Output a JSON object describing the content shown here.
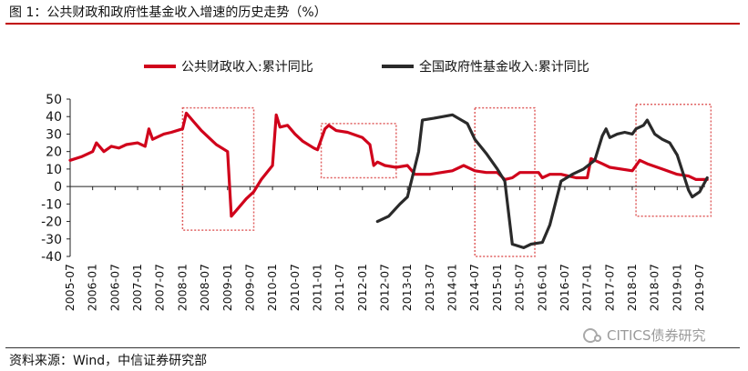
{
  "title": "图 1：公共财政和政府性基金收入增速的历史走势（%）",
  "source": "资料来源：Wind，中信证券研究部",
  "watermark": "CITICS债券研究",
  "colors": {
    "series1": "#d0021b",
    "series2": "#2a2a2a",
    "box": "#e06060",
    "accent": "#c00000"
  },
  "chart_data": {
    "type": "line",
    "ylim": [
      -40,
      50
    ],
    "yticks": [
      50,
      40,
      30,
      20,
      10,
      0,
      -10,
      -20,
      -30,
      -40
    ],
    "xticks": [
      "2005-07",
      "2006-01",
      "2006-07",
      "2007-01",
      "2007-07",
      "2008-01",
      "2008-07",
      "2009-01",
      "2009-07",
      "2010-01",
      "2010-07",
      "2011-01",
      "2011-07",
      "2012-01",
      "2012-07",
      "2013-01",
      "2013-07",
      "2014-01",
      "2014-07",
      "2015-01",
      "2015-07",
      "2016-01",
      "2016-07",
      "2017-01",
      "2017-07",
      "2018-01",
      "2018-07",
      "2019-01",
      "2019-07"
    ],
    "legend_position": "top",
    "series": [
      {
        "name": "公共财政收入:累计同比",
        "points": [
          [
            "2005-07",
            15
          ],
          [
            "2005-10",
            17
          ],
          [
            "2006-01",
            20
          ],
          [
            "2006-02",
            25
          ],
          [
            "2006-04",
            20
          ],
          [
            "2006-06",
            23
          ],
          [
            "2006-08",
            22
          ],
          [
            "2006-10",
            24
          ],
          [
            "2007-01",
            25
          ],
          [
            "2007-03",
            23
          ],
          [
            "2007-04",
            33
          ],
          [
            "2007-05",
            27
          ],
          [
            "2007-08",
            30
          ],
          [
            "2007-10",
            31
          ],
          [
            "2008-01",
            33
          ],
          [
            "2008-02",
            42
          ],
          [
            "2008-04",
            37
          ],
          [
            "2008-06",
            32
          ],
          [
            "2008-08",
            28
          ],
          [
            "2008-10",
            24
          ],
          [
            "2009-01",
            20
          ],
          [
            "2009-02",
            -17
          ],
          [
            "2009-04",
            -12
          ],
          [
            "2009-06",
            -7
          ],
          [
            "2009-08",
            -3
          ],
          [
            "2009-10",
            4
          ],
          [
            "2010-01",
            12
          ],
          [
            "2010-02",
            41
          ],
          [
            "2010-03",
            34
          ],
          [
            "2010-05",
            35
          ],
          [
            "2010-07",
            30
          ],
          [
            "2010-09",
            26
          ],
          [
            "2010-12",
            22
          ],
          [
            "2011-01",
            21
          ],
          [
            "2011-03",
            33
          ],
          [
            "2011-04",
            35
          ],
          [
            "2011-06",
            32
          ],
          [
            "2011-09",
            31
          ],
          [
            "2012-01",
            28
          ],
          [
            "2012-03",
            24
          ],
          [
            "2012-04",
            12
          ],
          [
            "2012-05",
            14
          ],
          [
            "2012-07",
            12
          ],
          [
            "2012-10",
            11
          ],
          [
            "2013-01",
            12
          ],
          [
            "2013-03",
            7
          ],
          [
            "2013-07",
            7
          ],
          [
            "2014-01",
            9
          ],
          [
            "2014-04",
            12
          ],
          [
            "2014-07",
            9
          ],
          [
            "2014-10",
            8
          ],
          [
            "2015-01",
            8
          ],
          [
            "2015-03",
            4
          ],
          [
            "2015-05",
            5
          ],
          [
            "2015-07",
            8
          ],
          [
            "2015-12",
            8
          ],
          [
            "2016-01",
            5
          ],
          [
            "2016-03",
            7
          ],
          [
            "2016-06",
            7
          ],
          [
            "2016-10",
            5
          ],
          [
            "2017-01",
            5
          ],
          [
            "2017-02",
            16
          ],
          [
            "2017-05",
            13
          ],
          [
            "2017-07",
            11
          ],
          [
            "2018-01",
            9
          ],
          [
            "2018-03",
            15
          ],
          [
            "2018-05",
            13
          ],
          [
            "2018-09",
            10
          ],
          [
            "2019-01",
            7
          ],
          [
            "2019-04",
            6
          ],
          [
            "2019-06",
            4
          ],
          [
            "2019-09",
            4
          ]
        ]
      },
      {
        "name": "全国政府性基金收入:累计同比",
        "points": [
          [
            "2012-05",
            -20
          ],
          [
            "2012-08",
            -17
          ],
          [
            "2012-11",
            -10
          ],
          [
            "2013-01",
            -6
          ],
          [
            "2013-04",
            20
          ],
          [
            "2013-05",
            38
          ],
          [
            "2013-08",
            39
          ],
          [
            "2014-01",
            41
          ],
          [
            "2014-05",
            36
          ],
          [
            "2014-07",
            27
          ],
          [
            "2014-10",
            19
          ],
          [
            "2015-01",
            10
          ],
          [
            "2015-03",
            3
          ],
          [
            "2015-04",
            -15
          ],
          [
            "2015-05",
            -33
          ],
          [
            "2015-08",
            -35
          ],
          [
            "2015-10",
            -33
          ],
          [
            "2016-01",
            -32
          ],
          [
            "2016-03",
            -22
          ],
          [
            "2016-06",
            3
          ],
          [
            "2016-09",
            7
          ],
          [
            "2016-12",
            10
          ],
          [
            "2017-03",
            15
          ],
          [
            "2017-05",
            29
          ],
          [
            "2017-06",
            33
          ],
          [
            "2017-07",
            28
          ],
          [
            "2017-09",
            30
          ],
          [
            "2017-11",
            31
          ],
          [
            "2018-01",
            30
          ],
          [
            "2018-02",
            33
          ],
          [
            "2018-04",
            35
          ],
          [
            "2018-05",
            38
          ],
          [
            "2018-07",
            30
          ],
          [
            "2018-09",
            27
          ],
          [
            "2018-11",
            25
          ],
          [
            "2019-01",
            18
          ],
          [
            "2019-04",
            -2
          ],
          [
            "2019-05",
            -6
          ],
          [
            "2019-07",
            -3
          ],
          [
            "2019-08",
            1
          ],
          [
            "2019-09",
            5
          ]
        ]
      }
    ]
  }
}
